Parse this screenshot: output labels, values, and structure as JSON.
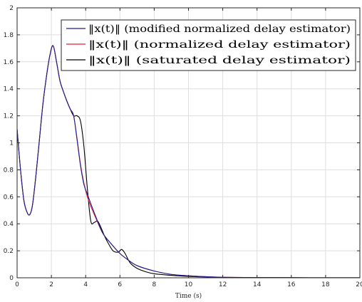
{
  "chart_data": {
    "type": "line",
    "title": "",
    "xlabel": "Time (s)",
    "ylabel": "",
    "xlim": [
      0,
      20
    ],
    "ylim": [
      0,
      2
    ],
    "xticks": [
      0,
      2,
      4,
      6,
      8,
      10,
      12,
      14,
      16,
      18,
      20
    ],
    "yticks": [
      0,
      0.2,
      0.4,
      0.6,
      0.8,
      1,
      1.2,
      1.4,
      1.6,
      1.8,
      2
    ],
    "grid": true,
    "legend_position": "top-right",
    "series": [
      {
        "name": "‖x(t)‖ (modified normalized delay estimator)",
        "color": "#1f1f8f",
        "x": [
          0,
          0.2,
          0.4,
          0.6,
          0.75,
          0.9,
          1.1,
          1.3,
          1.5,
          1.7,
          1.9,
          2.1,
          2.3,
          2.5,
          2.7,
          2.9,
          3.1,
          3.3,
          3.5,
          3.7,
          3.9,
          4.1,
          4.3,
          4.6,
          5.0,
          5.5,
          6.0,
          6.5,
          7.0,
          8.0,
          9.0,
          10.0,
          11.0,
          12.0,
          14.0,
          16.0,
          18.0,
          20.0
        ],
        "y": [
          1.1,
          0.8,
          0.57,
          0.48,
          0.47,
          0.54,
          0.76,
          1.02,
          1.28,
          1.48,
          1.64,
          1.72,
          1.6,
          1.46,
          1.38,
          1.31,
          1.25,
          1.2,
          1.02,
          0.83,
          0.69,
          0.62,
          0.55,
          0.45,
          0.33,
          0.25,
          0.18,
          0.13,
          0.09,
          0.05,
          0.025,
          0.015,
          0.008,
          0.004,
          0.002,
          0.001,
          0.0005,
          0.0002
        ]
      },
      {
        "name": "‖x(t)‖ (normalized delay estimator)",
        "color": "#e0213a",
        "x": [
          0,
          0.2,
          0.4,
          0.6,
          0.75,
          0.9,
          1.1,
          1.3,
          1.5,
          1.7,
          1.9,
          2.1,
          2.3,
          2.5,
          2.7,
          2.9,
          3.1,
          3.3,
          3.5,
          3.7,
          3.9,
          4.1,
          4.3,
          4.6,
          5.0,
          5.5,
          6.0,
          6.5,
          7.0,
          8.0,
          9.0,
          10.0,
          11.0,
          12.0,
          14.0,
          16.0,
          18.0,
          20.0
        ],
        "y": [
          1.1,
          0.8,
          0.57,
          0.48,
          0.47,
          0.54,
          0.76,
          1.02,
          1.28,
          1.48,
          1.64,
          1.72,
          1.6,
          1.46,
          1.38,
          1.31,
          1.25,
          1.2,
          1.03,
          0.84,
          0.7,
          0.6,
          0.53,
          0.44,
          0.33,
          0.25,
          0.18,
          0.13,
          0.09,
          0.05,
          0.025,
          0.015,
          0.008,
          0.004,
          0.002,
          0.001,
          0.0005,
          0.0002
        ]
      },
      {
        "name": "‖x(t)‖ (saturated delay estimator)",
        "color": "#000000",
        "x": [
          0,
          0.2,
          0.4,
          0.6,
          0.75,
          0.9,
          1.1,
          1.3,
          1.5,
          1.7,
          1.9,
          2.1,
          2.3,
          2.5,
          2.7,
          2.9,
          3.1,
          3.3,
          3.5,
          3.7,
          3.9,
          4.1,
          4.3,
          4.5,
          4.7,
          4.9,
          5.1,
          5.3,
          5.6,
          5.9,
          6.1,
          6.3,
          6.6,
          7.0,
          7.5,
          8.0,
          9.0,
          10.0,
          11.0,
          12.0,
          14.0,
          16.0,
          18.0,
          20.0
        ],
        "y": [
          1.1,
          0.8,
          0.57,
          0.48,
          0.47,
          0.54,
          0.76,
          1.02,
          1.28,
          1.48,
          1.64,
          1.72,
          1.6,
          1.46,
          1.38,
          1.31,
          1.25,
          1.2,
          1.2,
          1.16,
          0.97,
          0.66,
          0.42,
          0.41,
          0.42,
          0.37,
          0.31,
          0.26,
          0.2,
          0.19,
          0.21,
          0.18,
          0.11,
          0.07,
          0.045,
          0.03,
          0.018,
          0.01,
          0.006,
          0.003,
          0.0015,
          0.0008,
          0.0003,
          0.0001
        ]
      }
    ]
  }
}
